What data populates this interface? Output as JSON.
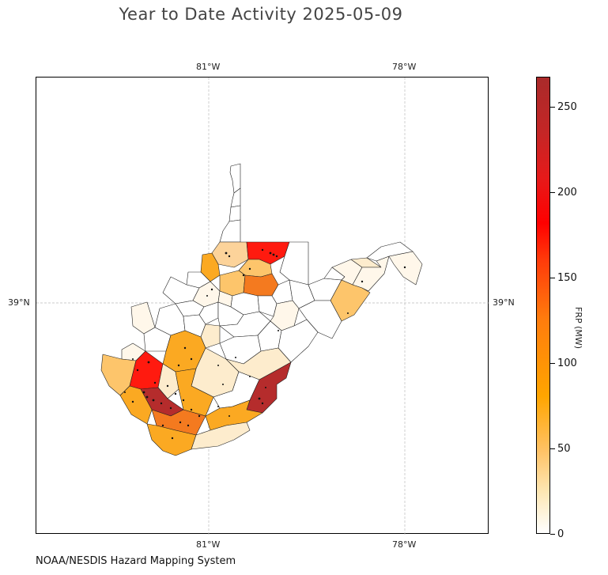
{
  "title": "Year to Date Activity 2025-05-09",
  "source_note": "NOAA/NESDIS Hazard Mapping System",
  "map": {
    "region": "West Virginia counties",
    "longitude_ticks": [
      "81°W",
      "78°W"
    ],
    "latitude_ticks": [
      "39°N"
    ],
    "gridlines": true,
    "fill_colors": {
      "zero": "#ffffff",
      "very_low": "#fff7ea",
      "low": "#fdeccd",
      "mid_low": "#fcd39a",
      "mid": "#fdc56b",
      "orange": "#fba922",
      "dark_orange": "#f47a1f",
      "red": "#ff1a0f",
      "dark_red": "#b52c2c"
    }
  },
  "colorbar": {
    "title": "FRP (MW)",
    "ticks": [
      "0",
      "50",
      "100",
      "150",
      "200",
      "250"
    ],
    "min": 0,
    "max": 268
  }
}
